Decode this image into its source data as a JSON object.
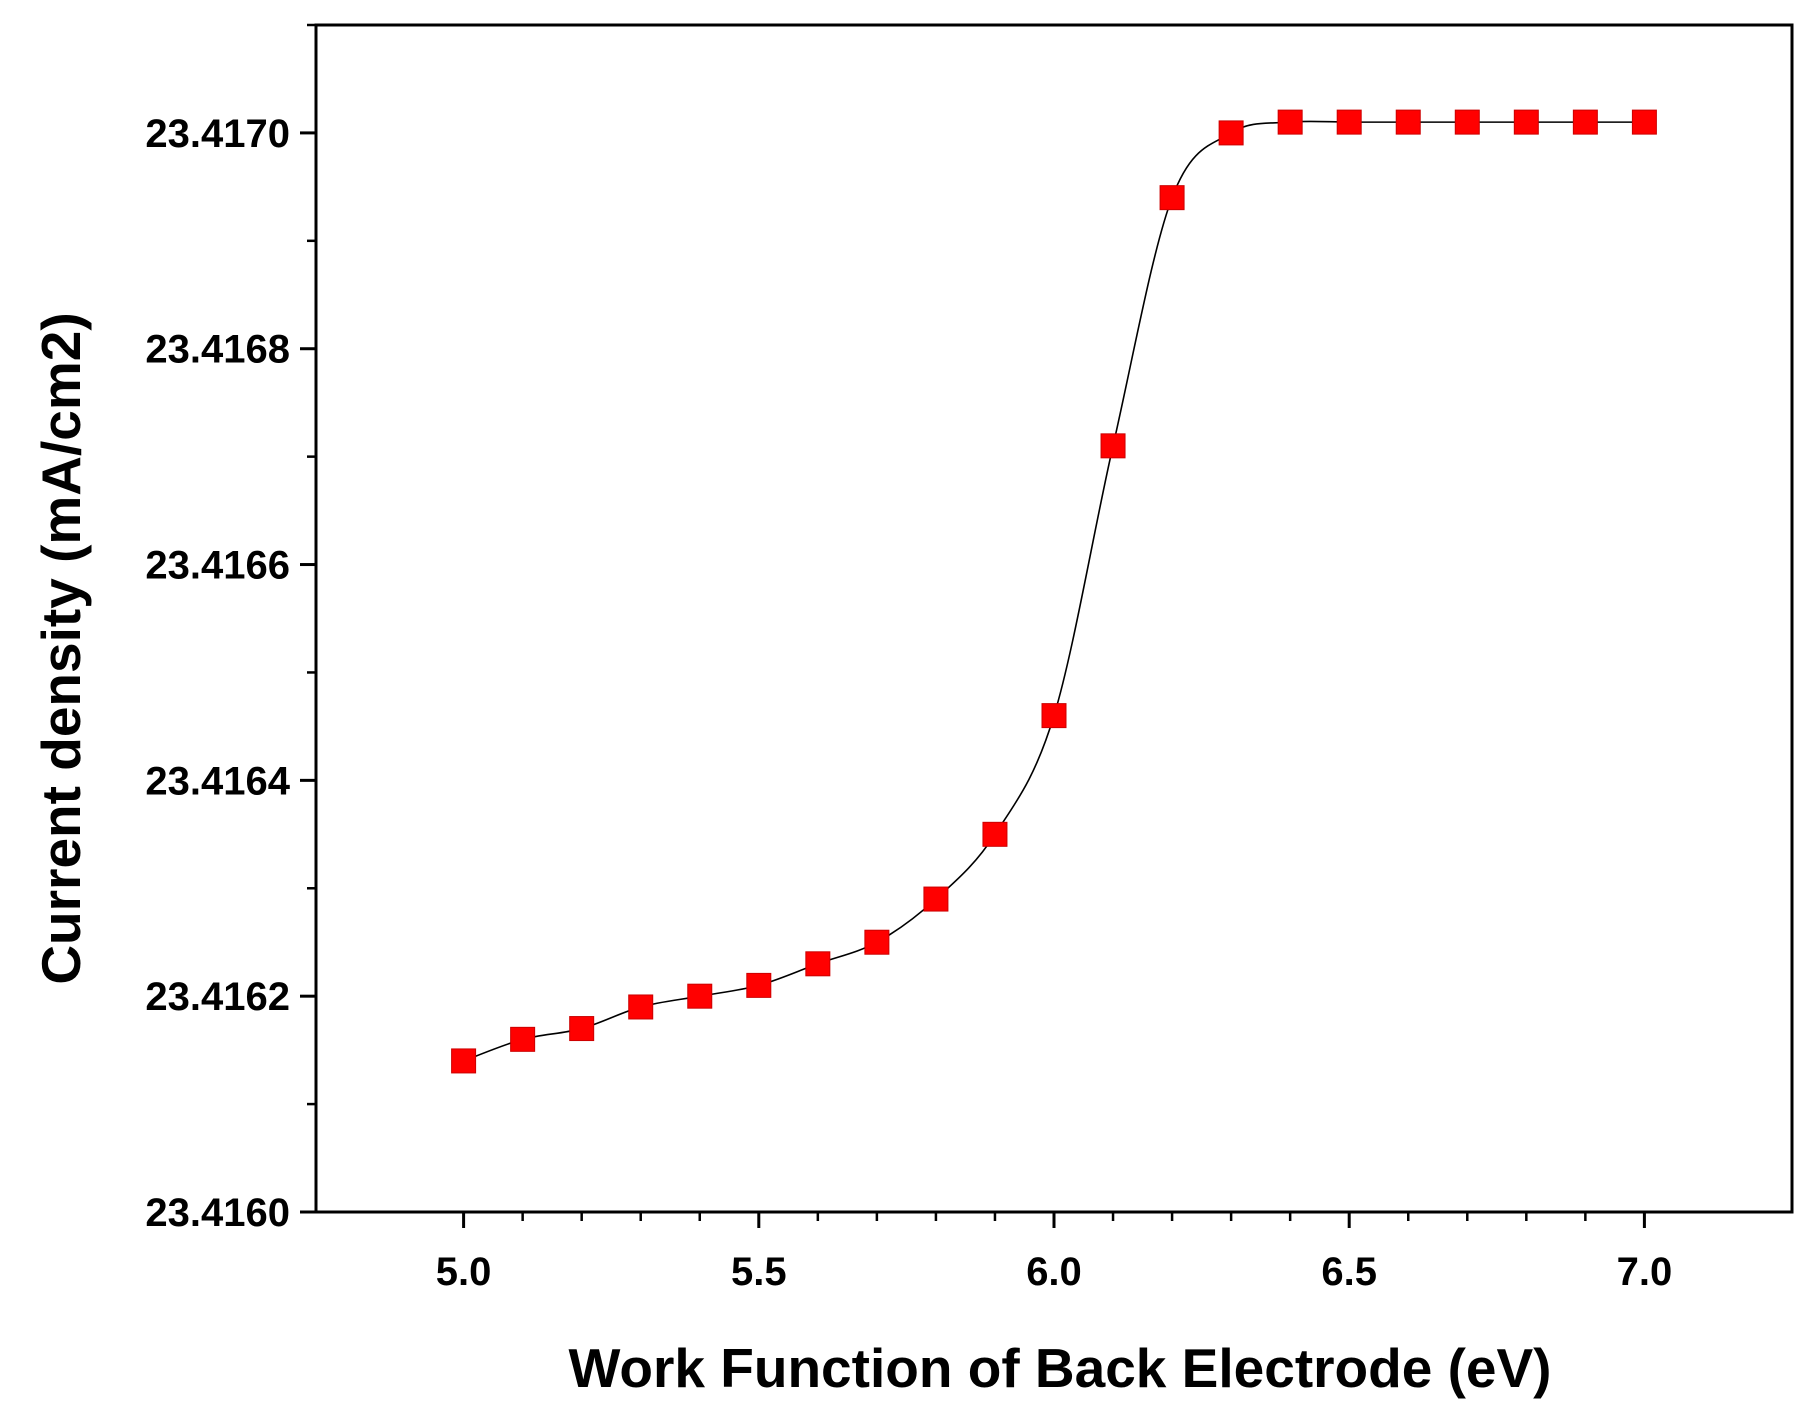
{
  "chart_data": {
    "type": "line",
    "title": "",
    "xlabel": "Work Function of Back Electrode (eV)",
    "ylabel": "Current density (mA/cm2)",
    "xlim": [
      4.75,
      7.25
    ],
    "ylim": [
      23.416,
      23.4171
    ],
    "x_ticks": [
      5.0,
      5.5,
      6.0,
      6.5,
      7.0
    ],
    "x_tick_labels": [
      "5.0",
      "5.5",
      "6.0",
      "6.5",
      "7.0"
    ],
    "y_ticks": [
      23.416,
      23.4162,
      23.4164,
      23.4166,
      23.4168,
      23.417
    ],
    "y_tick_labels": [
      "23.4160",
      "23.4162",
      "23.4164",
      "23.4166",
      "23.4168",
      "23.4170"
    ],
    "grid": false,
    "legend": "none",
    "series": [
      {
        "marker": "square",
        "marker_color": "#ff0000",
        "line_color": "#000000",
        "x": [
          5.0,
          5.1,
          5.2,
          5.3,
          5.4,
          5.5,
          5.6,
          5.7,
          5.8,
          5.9,
          6.0,
          6.1,
          6.2,
          6.3,
          6.4,
          6.5,
          6.6,
          6.7,
          6.8,
          6.9,
          7.0
        ],
        "y": [
          23.41614,
          23.41616,
          23.41617,
          23.41619,
          23.4162,
          23.41621,
          23.41623,
          23.41625,
          23.41629,
          23.41635,
          23.41646,
          23.41671,
          23.41694,
          23.417,
          23.41701,
          23.41701,
          23.41701,
          23.41701,
          23.41701,
          23.41701,
          23.41701
        ]
      }
    ]
  }
}
